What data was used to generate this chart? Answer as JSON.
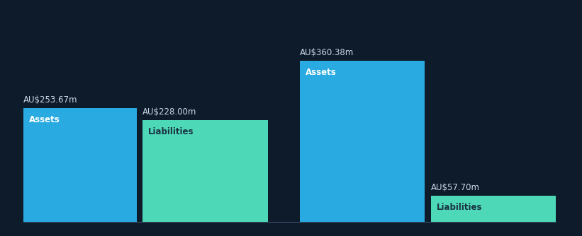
{
  "background_color": "#0d1b2a",
  "short_term": {
    "assets_value": 253.67,
    "liabilities_value": 228.0,
    "assets_label": "AU$253.67m",
    "liabilities_label": "AU$228.00m"
  },
  "long_term": {
    "assets_value": 360.38,
    "liabilities_value": 57.7,
    "assets_label": "AU$360.38m",
    "liabilities_label": "AU$57.70m"
  },
  "assets_color": "#29abe2",
  "liabilities_color": "#4dd9b8",
  "assets_label_color": "#ffffff",
  "liabilities_label_color": "#1a3040",
  "value_label_color": "#c8d8e8",
  "group_label_color": "#ffffff",
  "max_value": 380,
  "value_label_fontsize": 8.5,
  "bar_label_fontsize": 8.5,
  "group_label_fontsize": 13
}
